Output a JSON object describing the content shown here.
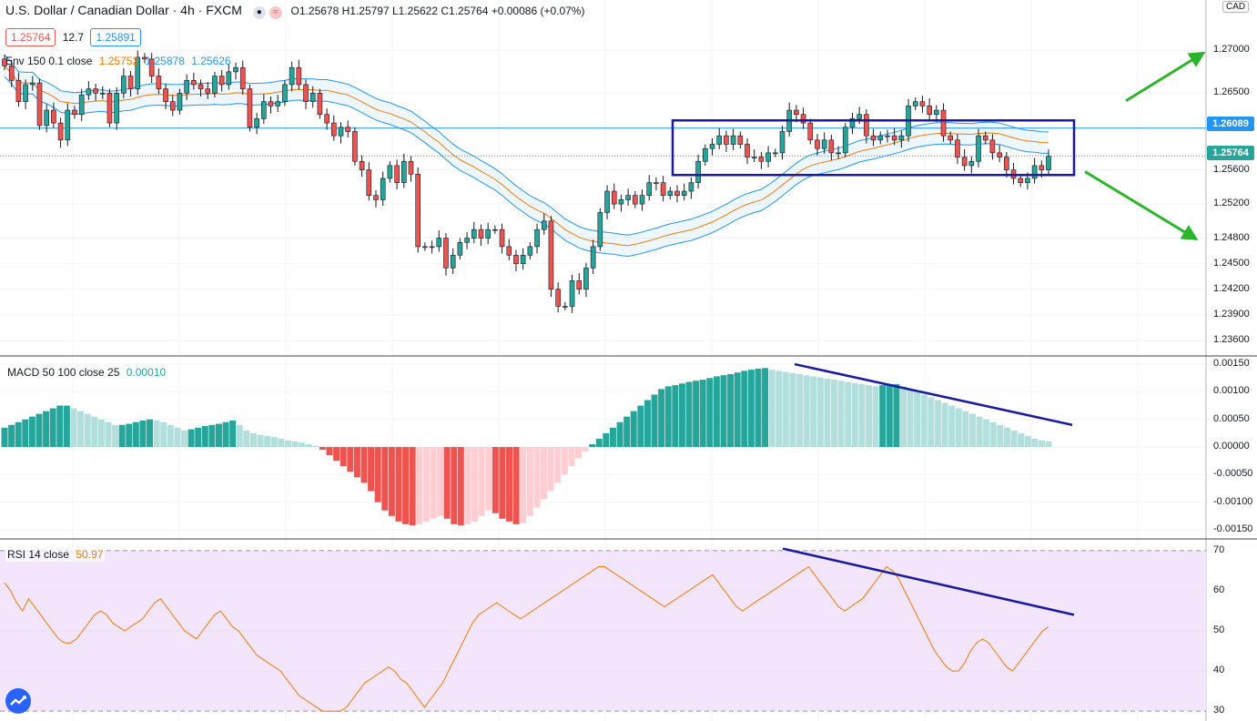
{
  "header": {
    "symbol": "U.S. Dollar / Canadian Dollar · 4h · FXCM",
    "ohlc": "O1.25678  H1.25797  L1.25622  C1.25764  +0.00086 (+0.07%)",
    "bid": "1.25764",
    "spread": "12.7",
    "ask": "1.25891",
    "envelope_label": "Env 150 0.1 close",
    "envelope_values": [
      "1.25752",
      "1.25878",
      "1.25626"
    ]
  },
  "currency": "CAD",
  "macd_label": "MACD 50 100 close 25",
  "macd_value": "0.00010",
  "rsi_label": "RSI 14 close",
  "rsi_value": "50.97",
  "price_tags": {
    "line": "1.26089",
    "last": "1.25764"
  },
  "colors": {
    "bull": "#26a69a",
    "bear": "#ef5350",
    "env_band": "#2196f3",
    "env_mid": "#f57c00",
    "annotation": "#1a1aa0",
    "arrow": "#2bb52b",
    "rsi_bg": "#f3e5fc",
    "rsi_line": "#f57c00"
  },
  "chart_data": [
    {
      "type": "candlestick",
      "title": "U.S. Dollar / Canadian Dollar · 4h · FXCM",
      "ylim": [
        1.2345,
        1.274
      ],
      "y_ticks": [
        "1.27000",
        "1.26500",
        "1.26089",
        "1.25600",
        "1.25200",
        "1.24800",
        "1.24500",
        "1.24200",
        "1.23900",
        "1.23600"
      ],
      "horizontal_line": 1.26089,
      "last_price": 1.25764,
      "closes": [
        1.2682,
        1.2665,
        1.264,
        1.266,
        1.2662,
        1.2612,
        1.263,
        1.2615,
        1.2595,
        1.263,
        1.2625,
        1.2648,
        1.2655,
        1.265,
        1.265,
        1.2615,
        1.265,
        1.267,
        1.2655,
        1.2692,
        1.269,
        1.267,
        1.2655,
        1.264,
        1.263,
        1.265,
        1.2665,
        1.266,
        1.2655,
        1.265,
        1.267,
        1.266,
        1.2675,
        1.268,
        1.2655,
        1.261,
        1.262,
        1.264,
        1.2635,
        1.264,
        1.266,
        1.268,
        1.266,
        1.264,
        1.265,
        1.2625,
        1.2615,
        1.26,
        1.261,
        1.2605,
        1.257,
        1.256,
        1.253,
        1.2525,
        1.255,
        1.2565,
        1.2545,
        1.257,
        1.2555,
        1.247,
        1.247,
        1.247,
        1.248,
        1.2445,
        1.246,
        1.2475,
        1.248,
        1.249,
        1.248,
        1.249,
        1.249,
        1.247,
        1.246,
        1.245,
        1.246,
        1.247,
        1.249,
        1.25,
        1.242,
        1.24,
        1.24,
        1.243,
        1.242,
        1.2445,
        1.247,
        1.251,
        1.2535,
        1.252,
        1.2525,
        1.253,
        1.252,
        1.253,
        1.2545,
        1.2545,
        1.253,
        1.2535,
        1.253,
        1.2535,
        1.2545,
        1.257,
        1.2585,
        1.259,
        1.26,
        1.259,
        1.26,
        1.259,
        1.2575,
        1.2575,
        1.257,
        1.258,
        1.258,
        1.2605,
        1.263,
        1.2625,
        1.2615,
        1.2595,
        1.2585,
        1.2595,
        1.258,
        1.258,
        1.261,
        1.262,
        1.2625,
        1.26,
        1.2595,
        1.26,
        1.26,
        1.2595,
        1.26,
        1.2635,
        1.264,
        1.2635,
        1.2625,
        1.263,
        1.26,
        1.2595,
        1.2575,
        1.2565,
        1.257,
        1.26,
        1.2595,
        1.258,
        1.2575,
        1.256,
        1.255,
        1.2545,
        1.255,
        1.2565,
        1.256,
        1.2576
      ]
    },
    {
      "type": "bar",
      "title": "MACD 50 100 close 25",
      "ylim": [
        -0.0016,
        0.0016
      ],
      "y_ticks": [
        "0.00150",
        "0.00100",
        "0.00050",
        "0.00000",
        "-0.00050",
        "-0.00100",
        "-0.00150"
      ],
      "values": [
        0.00035,
        0.0004,
        0.00045,
        0.0005,
        0.00055,
        0.0006,
        0.00065,
        0.0007,
        0.00075,
        0.00075,
        0.0007,
        0.00065,
        0.0006,
        0.00055,
        0.0005,
        0.00045,
        0.0004,
        0.0004,
        0.00042,
        0.00045,
        0.00048,
        0.0005,
        0.00048,
        0.00045,
        0.0004,
        0.00035,
        0.0003,
        0.00032,
        0.00035,
        0.00038,
        0.0004,
        0.00042,
        0.00045,
        0.00048,
        0.0004,
        0.0003,
        0.00025,
        0.00022,
        0.0002,
        0.00018,
        0.00015,
        0.00012,
        0.0001,
        8e-05,
        5e-05,
        2e-05,
        -5e-05,
        -0.00015,
        -0.00025,
        -0.00035,
        -0.00045,
        -0.00055,
        -0.00065,
        -0.0008,
        -0.001,
        -0.00115,
        -0.00125,
        -0.00135,
        -0.0014,
        -0.00142,
        -0.0014,
        -0.00135,
        -0.0013,
        -0.00125,
        -0.0013,
        -0.0014,
        -0.00142,
        -0.0014,
        -0.00135,
        -0.00125,
        -0.00115,
        -0.0012,
        -0.0013,
        -0.00135,
        -0.0014,
        -0.00138,
        -0.00125,
        -0.0011,
        -0.00095,
        -0.0008,
        -0.00065,
        -0.0005,
        -0.00035,
        -0.0002,
        -8e-05,
        5e-05,
        0.00015,
        0.00025,
        0.00035,
        0.00045,
        0.00055,
        0.00065,
        0.00075,
        0.00085,
        0.00095,
        0.00105,
        0.0011,
        0.00112,
        0.00115,
        0.00118,
        0.0012,
        0.00122,
        0.00125,
        0.00128,
        0.0013,
        0.00132,
        0.00135,
        0.00138,
        0.0014,
        0.00142,
        0.00143,
        0.0014,
        0.00138,
        0.00136,
        0.00134,
        0.00132,
        0.0013,
        0.00128,
        0.00126,
        0.00124,
        0.00122,
        0.0012,
        0.00118,
        0.00116,
        0.00114,
        0.00112,
        0.0011,
        0.00112,
        0.00114,
        0.00114,
        0.0011,
        0.00105,
        0.001,
        0.00095,
        0.0009,
        0.00085,
        0.0008,
        0.00075,
        0.0007,
        0.00065,
        0.0006,
        0.00055,
        0.0005,
        0.00045,
        0.0004,
        0.00035,
        0.0003,
        0.00025,
        0.0002,
        0.00015,
        0.00012,
        0.0001
      ]
    },
    {
      "type": "line",
      "title": "RSI 14 close",
      "ylim": [
        28,
        72
      ],
      "y_ticks": [
        "70",
        "60",
        "50",
        "40",
        "30"
      ],
      "bands": [
        30,
        70
      ],
      "values": [
        62,
        60,
        57,
        55,
        58,
        56,
        54,
        52,
        50,
        48,
        47,
        47,
        48,
        50,
        52,
        54,
        55,
        54,
        52,
        51,
        50,
        51,
        52,
        53,
        55,
        57,
        58,
        56,
        54,
        52,
        50,
        49,
        48,
        50,
        52,
        54,
        55,
        53,
        51,
        50,
        48,
        46,
        44,
        43,
        42,
        41,
        40,
        38,
        36,
        34,
        33,
        32,
        31,
        30,
        30,
        30,
        30,
        31,
        33,
        35,
        37,
        38,
        39,
        40,
        41,
        40,
        38,
        37,
        35,
        33,
        31,
        33,
        35,
        37,
        40,
        43,
        46,
        49,
        52,
        54,
        55,
        56,
        57,
        56,
        55,
        54,
        53,
        54,
        55,
        56,
        57,
        58,
        59,
        60,
        61,
        62,
        63,
        64,
        65,
        66,
        66,
        65,
        64,
        63,
        62,
        61,
        60,
        59,
        58,
        57,
        56,
        57,
        58,
        59,
        60,
        61,
        62,
        63,
        64,
        62,
        60,
        58,
        56,
        55,
        56,
        57,
        58,
        59,
        60,
        61,
        62,
        63,
        64,
        65,
        66,
        64,
        62,
        60,
        58,
        56,
        55,
        56,
        57,
        58,
        60,
        62,
        64,
        66,
        65,
        63,
        60,
        57,
        54,
        51,
        48,
        45,
        43,
        41,
        40,
        40,
        42,
        45,
        47,
        48,
        47,
        45,
        43,
        41,
        40,
        42,
        44,
        46,
        48,
        50,
        51
      ]
    }
  ]
}
